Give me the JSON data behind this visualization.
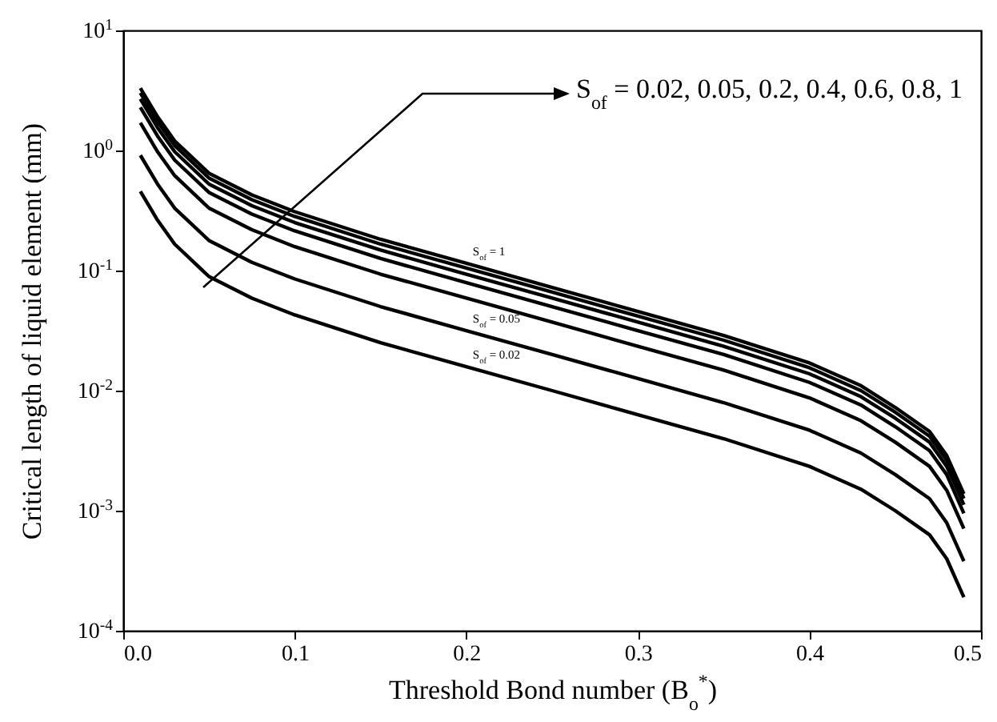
{
  "chart_data": {
    "type": "line",
    "xlabel": "Threshold Bond number (B$_{o}$$^{*}$)",
    "ylabel": "Critical length of liquid element (mm)",
    "log": "y",
    "xlim": [
      0,
      0.5
    ],
    "xticks": [
      {
        "value": 0,
        "label": "0.0"
      },
      0.1,
      0.2,
      0.3,
      0.4,
      0.5
    ],
    "ylim": [
      0.0001,
      10
    ],
    "yticks": [
      {
        "value": 0.0001,
        "label": "10$^{-4}$"
      },
      {
        "value": 0.001,
        "label": "10$^{-3}$"
      },
      {
        "value": 0.01,
        "label": "10$^{-2}$"
      },
      {
        "value": 0.1,
        "label": "10$^{-1}$"
      },
      {
        "value": 1,
        "label": "10$^{0}$"
      },
      {
        "value": 10,
        "label": "10$^{1}$"
      }
    ],
    "x": [
      0.01,
      0.02,
      0.03,
      0.05,
      0.075,
      0.1,
      0.15,
      0.2,
      0.25,
      0.3,
      0.35,
      0.4,
      0.43,
      0.45,
      0.47,
      0.48,
      0.49
    ],
    "series": [
      {
        "name": "S$_{of}$ = 0.02",
        "color": "#000000",
        "values": [
          0.457,
          0.263,
          0.166,
          0.0891,
          0.0589,
          0.0427,
          0.0251,
          0.0158,
          0.01,
          0.0063,
          0.00398,
          0.00234,
          0.00151,
          0.001,
          0.00063,
          0.000398,
          0.00019
        ]
      },
      {
        "name": "S$_{of}$ = 0.05",
        "color": "#000000",
        "values": [
          0.912,
          0.525,
          0.331,
          0.178,
          0.117,
          0.0851,
          0.0501,
          0.0316,
          0.02,
          0.0126,
          0.00794,
          0.00468,
          0.00302,
          0.002,
          0.00126,
          0.000794,
          0.00038
        ]
      },
      {
        "color": "#000000",
        "values": [
          1.7,
          0.977,
          0.617,
          0.331,
          0.219,
          0.158,
          0.0933,
          0.0589,
          0.0372,
          0.0234,
          0.0148,
          0.0087,
          0.00562,
          0.00372,
          0.00234,
          0.00148,
          0.00071
        ]
      },
      {
        "color": "#000000",
        "values": [
          2.29,
          1.32,
          0.832,
          0.447,
          0.295,
          0.214,
          0.126,
          0.0794,
          0.0501,
          0.0316,
          0.02,
          0.0117,
          0.00759,
          0.00501,
          0.00316,
          0.002,
          0.00095
        ]
      },
      {
        "color": "#000000",
        "values": [
          2.69,
          1.55,
          0.977,
          0.525,
          0.347,
          0.251,
          0.148,
          0.0933,
          0.0589,
          0.0372,
          0.0234,
          0.0138,
          0.00891,
          0.00589,
          0.00372,
          0.00234,
          0.00112
        ]
      },
      {
        "color": "#000000",
        "values": [
          3.02,
          1.74,
          1.1,
          0.589,
          0.389,
          0.282,
          0.166,
          0.105,
          0.0661,
          0.0417,
          0.0263,
          0.0155,
          0.01,
          0.00661,
          0.00417,
          0.00263,
          0.00126
        ]
      },
      {
        "name": "S$_{of}$ = 1",
        "color": "#000000",
        "values": [
          3.31,
          1.91,
          1.2,
          0.646,
          0.427,
          0.309,
          0.182,
          0.115,
          0.0724,
          0.0457,
          0.0288,
          0.017,
          0.011,
          0.00724,
          0.00457,
          0.00288,
          0.00138
        ]
      }
    ],
    "annotations": [
      "S$_{of}$ = 0.02, 0.05, 0.2, 0.4, 0.6, 0.8, 1"
    ]
  }
}
